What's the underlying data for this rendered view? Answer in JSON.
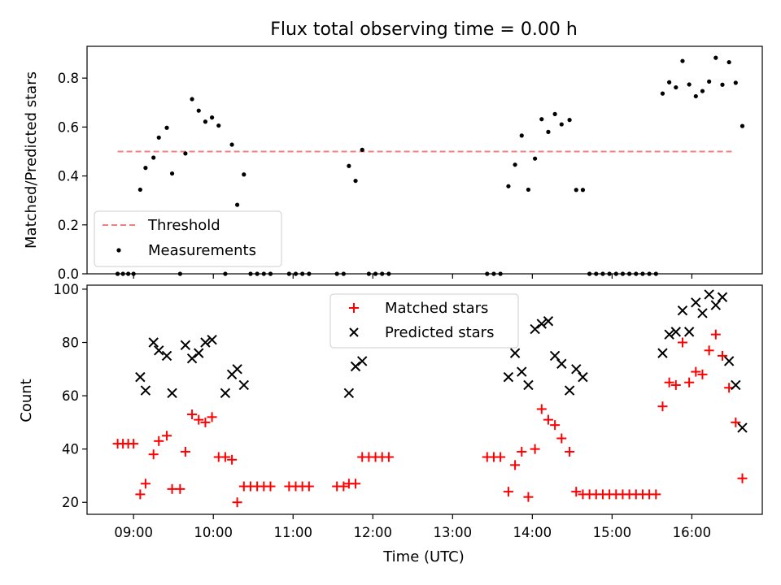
{
  "chart_data": [
    {
      "type": "scatter",
      "title": "Flux total observing time = 0.00 h",
      "ylabel": "Matched/Predicted stars",
      "xlabel": "",
      "ylim": [
        0,
        0.93
      ],
      "xlim": [
        "08:25",
        "16:53"
      ],
      "yticks": [
        0.0,
        0.2,
        0.4,
        0.6,
        0.8
      ],
      "ytick_labels": [
        "0.0",
        "0.2",
        "0.4",
        "0.6",
        "0.8"
      ],
      "legend_position": "lower-left",
      "threshold": {
        "name": "Threshold",
        "value": 0.5,
        "x_start": "08:48",
        "x_end": "16:30",
        "color": "#f08080"
      },
      "series": [
        {
          "name": "Measurements",
          "color": "#000000",
          "points": [
            [
              "08:48",
              0.0
            ],
            [
              "08:52",
              0.0
            ],
            [
              "08:56",
              0.0
            ],
            [
              "09:00",
              0.0
            ],
            [
              "09:05",
              0.344
            ],
            [
              "09:09",
              0.433
            ],
            [
              "09:15",
              0.475
            ],
            [
              "09:19",
              0.557
            ],
            [
              "09:25",
              0.597
            ],
            [
              "09:29",
              0.41
            ],
            [
              "09:35",
              0.0
            ],
            [
              "09:39",
              0.492
            ],
            [
              "09:44",
              0.714
            ],
            [
              "09:49",
              0.667
            ],
            [
              "09:54",
              0.622
            ],
            [
              "09:59",
              0.639
            ],
            [
              "10:04",
              0.606
            ],
            [
              "10:09",
              0.0
            ],
            [
              "10:14",
              0.528
            ],
            [
              "10:18",
              0.282
            ],
            [
              "10:23",
              0.406
            ],
            [
              "10:28",
              0.0
            ],
            [
              "10:33",
              0.0
            ],
            [
              "10:38",
              0.0
            ],
            [
              "10:43",
              0.0
            ],
            [
              "10:57",
              0.0
            ],
            [
              "11:02",
              0.0
            ],
            [
              "11:07",
              0.0
            ],
            [
              "11:12",
              0.0
            ],
            [
              "11:33",
              0.0
            ],
            [
              "11:38",
              0.0
            ],
            [
              "11:42",
              0.441
            ],
            [
              "11:47",
              0.38
            ],
            [
              "11:52",
              0.507
            ],
            [
              "11:57",
              0.0
            ],
            [
              "12:02",
              0.0
            ],
            [
              "12:07",
              0.0
            ],
            [
              "12:12",
              0.0
            ],
            [
              "13:26",
              0.0
            ],
            [
              "13:31",
              0.0
            ],
            [
              "13:36",
              0.0
            ],
            [
              "13:42",
              0.358
            ],
            [
              "13:47",
              0.446
            ],
            [
              "13:52",
              0.565
            ],
            [
              "13:57",
              0.344
            ],
            [
              "14:02",
              0.471
            ],
            [
              "14:07",
              0.632
            ],
            [
              "14:12",
              0.58
            ],
            [
              "14:17",
              0.653
            ],
            [
              "14:22",
              0.611
            ],
            [
              "14:28",
              0.629
            ],
            [
              "14:33",
              0.343
            ],
            [
              "14:38",
              0.343
            ],
            [
              "14:43",
              0.0
            ],
            [
              "14:48",
              0.0
            ],
            [
              "14:53",
              0.0
            ],
            [
              "14:58",
              0.0
            ],
            [
              "15:03",
              0.0
            ],
            [
              "15:08",
              0.0
            ],
            [
              "15:13",
              0.0
            ],
            [
              "15:18",
              0.0
            ],
            [
              "15:23",
              0.0
            ],
            [
              "15:28",
              0.0
            ],
            [
              "15:33",
              0.0
            ],
            [
              "15:38",
              0.737
            ],
            [
              "15:43",
              0.783
            ],
            [
              "15:48",
              0.762
            ],
            [
              "15:53",
              0.87
            ],
            [
              "15:58",
              0.774
            ],
            [
              "16:03",
              0.726
            ],
            [
              "16:08",
              0.747
            ],
            [
              "16:13",
              0.786
            ],
            [
              "16:18",
              0.883
            ],
            [
              "16:23",
              0.773
            ],
            [
              "16:28",
              0.865
            ],
            [
              "16:33",
              0.781
            ],
            [
              "16:38",
              0.604
            ]
          ]
        }
      ]
    },
    {
      "type": "scatter",
      "title": "",
      "ylabel": "Count",
      "xlabel": "Time (UTC)",
      "ylim": [
        15.5,
        101.5
      ],
      "xlim": [
        "08:25",
        "16:53"
      ],
      "yticks": [
        20,
        40,
        60,
        80,
        100
      ],
      "ytick_labels": [
        "20",
        "40",
        "60",
        "80",
        "100"
      ],
      "xticks": [
        "09:00",
        "10:00",
        "11:00",
        "12:00",
        "13:00",
        "14:00",
        "15:00",
        "16:00"
      ],
      "xtick_labels": [
        "09:00",
        "10:00",
        "11:00",
        "12:00",
        "13:00",
        "14:00",
        "15:00",
        "16:00"
      ],
      "legend_position": "upper-center",
      "series": [
        {
          "name": "Matched stars",
          "marker": "plus",
          "color": "#ff0000",
          "points": [
            [
              "08:48",
              42
            ],
            [
              "08:52",
              42
            ],
            [
              "08:56",
              42
            ],
            [
              "09:00",
              42
            ],
            [
              "09:05",
              23
            ],
            [
              "09:09",
              27
            ],
            [
              "09:15",
              38
            ],
            [
              "09:19",
              43
            ],
            [
              "09:25",
              45
            ],
            [
              "09:29",
              25
            ],
            [
              "09:35",
              25
            ],
            [
              "09:39",
              39
            ],
            [
              "09:44",
              53
            ],
            [
              "09:49",
              51
            ],
            [
              "09:54",
              50
            ],
            [
              "09:59",
              52
            ],
            [
              "10:04",
              37
            ],
            [
              "10:09",
              37
            ],
            [
              "10:14",
              36
            ],
            [
              "10:18",
              20
            ],
            [
              "10:23",
              26
            ],
            [
              "10:28",
              26
            ],
            [
              "10:33",
              26
            ],
            [
              "10:38",
              26
            ],
            [
              "10:43",
              26
            ],
            [
              "10:57",
              26
            ],
            [
              "11:02",
              26
            ],
            [
              "11:07",
              26
            ],
            [
              "11:12",
              26
            ],
            [
              "11:33",
              26
            ],
            [
              "11:38",
              26
            ],
            [
              "11:42",
              27
            ],
            [
              "11:47",
              27
            ],
            [
              "11:52",
              37
            ],
            [
              "11:57",
              37
            ],
            [
              "12:02",
              37
            ],
            [
              "12:07",
              37
            ],
            [
              "12:12",
              37
            ],
            [
              "13:26",
              37
            ],
            [
              "13:31",
              37
            ],
            [
              "13:36",
              37
            ],
            [
              "13:42",
              24
            ],
            [
              "13:47",
              34
            ],
            [
              "13:52",
              39
            ],
            [
              "13:57",
              22
            ],
            [
              "14:02",
              40
            ],
            [
              "14:07",
              55
            ],
            [
              "14:12",
              51
            ],
            [
              "14:17",
              49
            ],
            [
              "14:22",
              44
            ],
            [
              "14:28",
              39
            ],
            [
              "14:33",
              24
            ],
            [
              "14:38",
              23
            ],
            [
              "14:43",
              23
            ],
            [
              "14:48",
              23
            ],
            [
              "14:53",
              23
            ],
            [
              "14:58",
              23
            ],
            [
              "15:03",
              23
            ],
            [
              "15:08",
              23
            ],
            [
              "15:13",
              23
            ],
            [
              "15:18",
              23
            ],
            [
              "15:23",
              23
            ],
            [
              "15:28",
              23
            ],
            [
              "15:33",
              23
            ],
            [
              "15:38",
              56
            ],
            [
              "15:43",
              65
            ],
            [
              "15:48",
              64
            ],
            [
              "15:53",
              80
            ],
            [
              "15:58",
              65
            ],
            [
              "16:03",
              69
            ],
            [
              "16:08",
              68
            ],
            [
              "16:13",
              77
            ],
            [
              "16:18",
              83
            ],
            [
              "16:23",
              75
            ],
            [
              "16:28",
              63
            ],
            [
              "16:33",
              50
            ],
            [
              "16:38",
              29
            ]
          ]
        },
        {
          "name": "Predicted stars",
          "marker": "x",
          "color": "#000000",
          "points": [
            [
              "09:05",
              67
            ],
            [
              "09:09",
              62
            ],
            [
              "09:15",
              80
            ],
            [
              "09:19",
              77
            ],
            [
              "09:25",
              75
            ],
            [
              "09:29",
              61
            ],
            [
              "09:39",
              79
            ],
            [
              "09:44",
              74
            ],
            [
              "09:49",
              76
            ],
            [
              "09:54",
              80
            ],
            [
              "09:59",
              81
            ],
            [
              "10:09",
              61
            ],
            [
              "10:14",
              68
            ],
            [
              "10:18",
              70
            ],
            [
              "10:23",
              64
            ],
            [
              "11:42",
              61
            ],
            [
              "11:47",
              71
            ],
            [
              "11:52",
              73
            ],
            [
              "13:42",
              67
            ],
            [
              "13:47",
              76
            ],
            [
              "13:52",
              69
            ],
            [
              "13:57",
              64
            ],
            [
              "14:02",
              85
            ],
            [
              "14:07",
              87
            ],
            [
              "14:12",
              88
            ],
            [
              "14:17",
              75
            ],
            [
              "14:22",
              72
            ],
            [
              "14:28",
              62
            ],
            [
              "14:33",
              70
            ],
            [
              "14:38",
              67
            ],
            [
              "15:38",
              76
            ],
            [
              "15:43",
              83
            ],
            [
              "15:48",
              84
            ],
            [
              "15:53",
              92
            ],
            [
              "15:58",
              84
            ],
            [
              "16:03",
              95
            ],
            [
              "16:08",
              91
            ],
            [
              "16:13",
              98
            ],
            [
              "16:18",
              94
            ],
            [
              "16:23",
              97
            ],
            [
              "16:28",
              73
            ],
            [
              "16:33",
              64
            ],
            [
              "16:38",
              48
            ]
          ]
        }
      ]
    }
  ]
}
